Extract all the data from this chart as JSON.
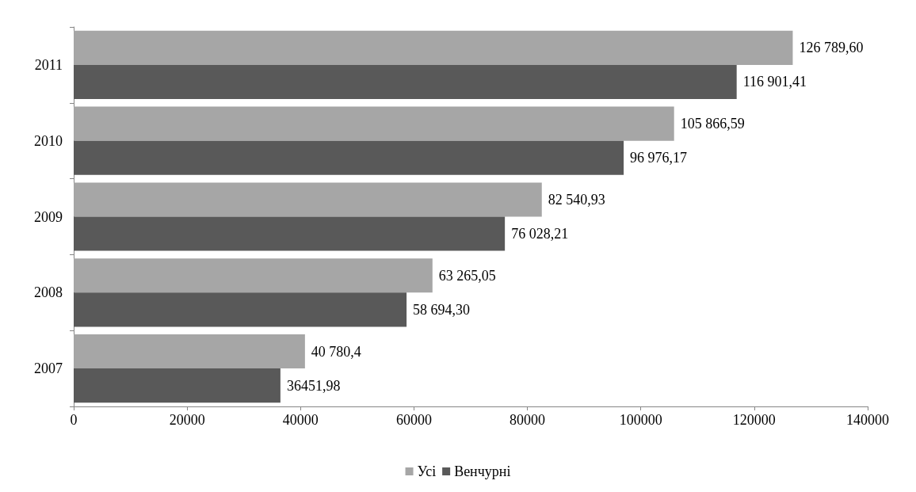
{
  "chart_data": {
    "type": "bar",
    "orientation": "horizontal",
    "categories": [
      "2011",
      "2010",
      "2009",
      "2008",
      "2007"
    ],
    "series": [
      {
        "name": "Усі",
        "color": "#a6a6a6",
        "values": [
          126789.6,
          105866.59,
          82540.93,
          63265.05,
          40780.4
        ],
        "value_labels": [
          "126 789,60",
          "105 866,59",
          "82 540,93",
          "63 265,05",
          "40 780,4"
        ]
      },
      {
        "name": "Венчурні",
        "color": "#595959",
        "values": [
          116901.41,
          96976.17,
          76028.21,
          58694.3,
          36451.98
        ],
        "value_labels": [
          "116 901,41",
          "96 976,17",
          "76 028,21",
          "58 694,30",
          "36451,98"
        ]
      }
    ],
    "xlim": [
      0,
      140000
    ],
    "xticks": [
      0,
      20000,
      40000,
      60000,
      80000,
      100000,
      120000,
      140000
    ],
    "grid": false,
    "legend": "bottom"
  }
}
